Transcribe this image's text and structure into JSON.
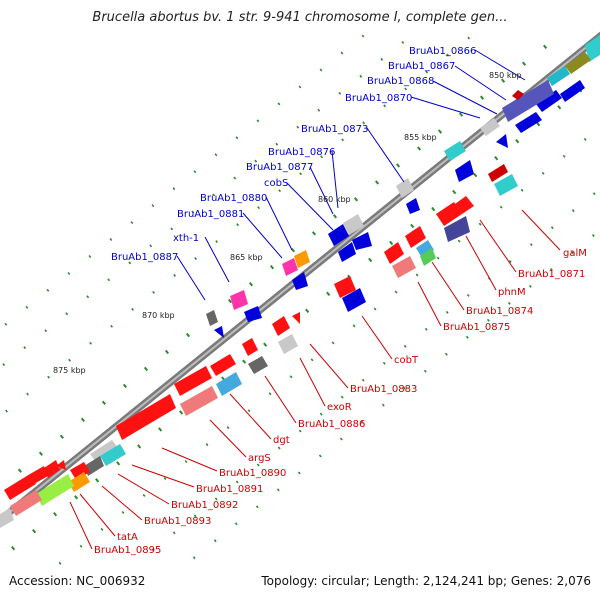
{
  "title": "Brucella abortus bv. 1 str. 9-941 chromosome I, complete gen...",
  "footer": {
    "accession": "Accession: NC_006932",
    "topology": "Topology: circular; Length: 2,124,241 bp; Genes: 2,076"
  },
  "colors": {
    "forward_label": "#0000cc",
    "reverse_label": "#cc0000",
    "backbone": "#888888",
    "tick": "#2a8a2a"
  },
  "kbp_ticks": [
    "850 kbp",
    "855 kbp",
    "860 kbp",
    "865 kbp",
    "870 kbp",
    "875 kbp"
  ],
  "forward_genes": [
    "BruAb1_0866",
    "BruAb1_0867",
    "BruAb1_0868",
    "BruAb1_0870",
    "BruAb1_0873",
    "BruAb1_0876",
    "BruAb1_0877",
    "cobS",
    "BruAb1_0880",
    "BruAb1_0881",
    "xth-1",
    "BruAb1_0887"
  ],
  "reverse_genes": [
    "galM",
    "BruAb1_0871",
    "phnM",
    "BruAb1_0874",
    "BruAb1_0875",
    "cobT",
    "BruAb1_0883",
    "exoR",
    "BruAb1_0886",
    "dgt",
    "argS",
    "BruAb1_0890",
    "BruAb1_0891",
    "BruAb1_0892",
    "BruAb1_0893",
    "tatA",
    "BruAb1_0895"
  ]
}
